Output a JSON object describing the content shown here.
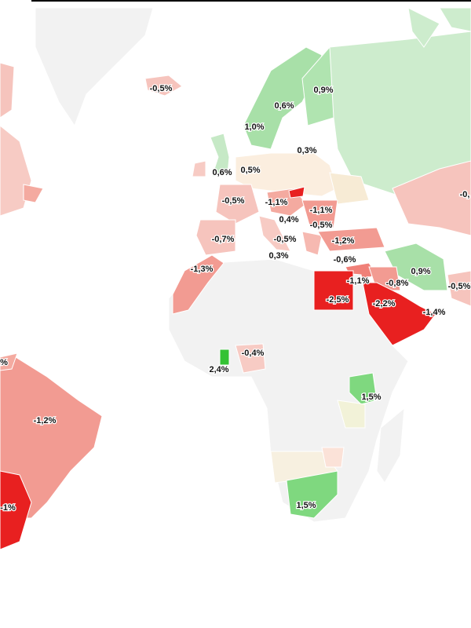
{
  "labels": [
    "-0,5%",
    "0,9%",
    "0,6%",
    "1,0%",
    "0,3%",
    "0,6%",
    "0,5%",
    "-0,5%",
    "-1,1%",
    "-1,1%",
    "0,4%",
    "-0,5%",
    "-0,7%",
    "-0,5%",
    "-1,2%",
    "0,3%",
    "-0,6%",
    "-1,3%",
    "0,9%",
    "-1,1%",
    "-0,8%",
    "-0,5%",
    "-2,5%",
    "-2,2%",
    "-1,4%",
    "-0,4%",
    "2,4%",
    "1,5%",
    "-1,2%",
    "1,5%",
    "%",
    "-1%",
    "-0,"
  ]
}
